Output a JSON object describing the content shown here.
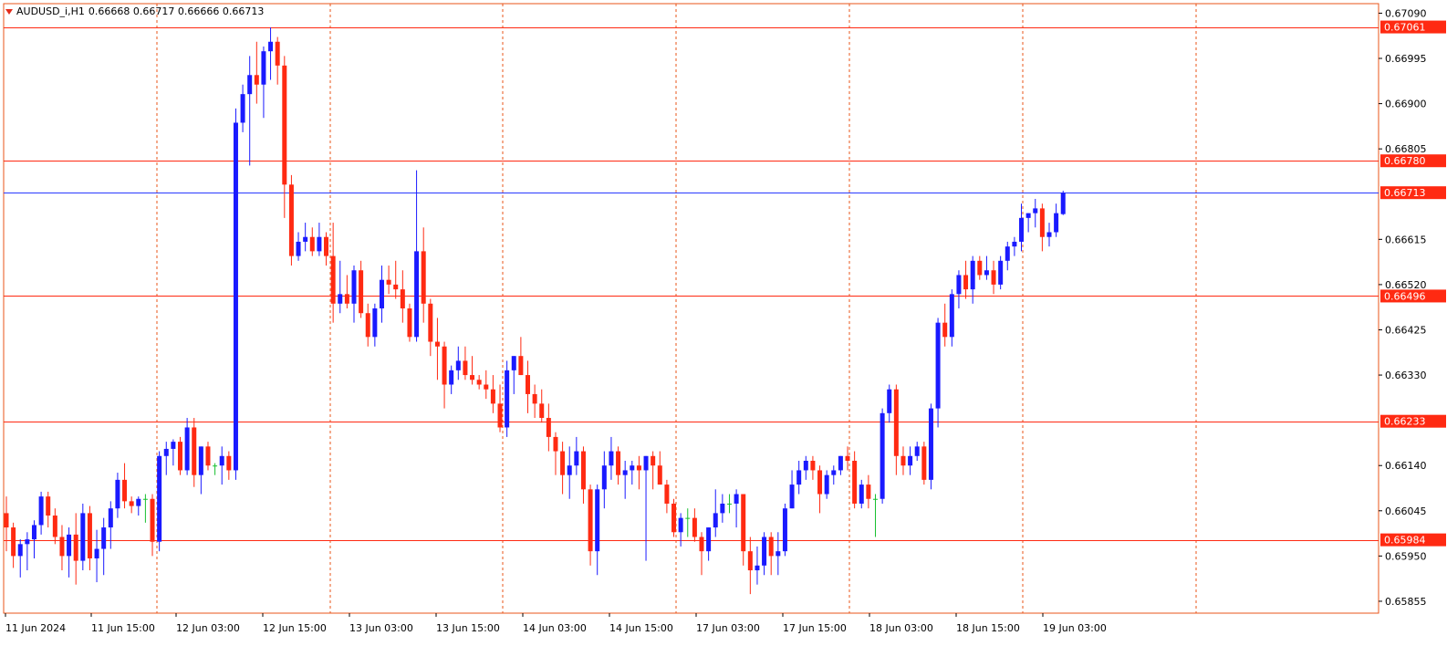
{
  "header": {
    "symbol": "AUDUSD_i,H1",
    "ohlc": "0.66668 0.66717 0.66666 0.66713"
  },
  "colors": {
    "bull": "#1a1aff",
    "bear": "#ff2a12",
    "doji": "#18c030",
    "level_line": "#ff2a12",
    "current_price_line": "#2a3aff",
    "grid": "#e8541a",
    "label_bg": "#ff2a12",
    "axis": "#e8541a"
  },
  "chart_data": {
    "type": "candlestick",
    "symbol": "AUDUSD_i",
    "timeframe": "H1",
    "y_range": [
      0.6583,
      0.6711
    ],
    "y_ticks": [
      "0.67090",
      "0.66995",
      "0.66900",
      "0.66805",
      "0.66615",
      "0.66520",
      "0.66425",
      "0.66330",
      "0.66140",
      "0.66045",
      "0.65950",
      "0.65855"
    ],
    "x_ticks": [
      "11 Jun 2024",
      "11 Jun 15:00",
      "12 Jun 03:00",
      "12 Jun 15:00",
      "13 Jun 03:00",
      "13 Jun 15:00",
      "14 Jun 03:00",
      "14 Jun 15:00",
      "17 Jun 03:00",
      "17 Jun 15:00",
      "18 Jun 03:00",
      "18 Jun 15:00",
      "19 Jun 03:00"
    ],
    "levels": [
      {
        "label": "0.67061",
        "value": 0.67061
      },
      {
        "label": "0.66780",
        "value": 0.6678
      },
      {
        "label": "0.66496",
        "value": 0.66496
      },
      {
        "label": "0.66233",
        "value": 0.66233
      },
      {
        "label": "0.65984",
        "value": 0.65984
      }
    ],
    "current_price": {
      "label": "0.66713",
      "value": 0.66713
    },
    "candles": [
      [
        0.6604,
        0.66075,
        0.6596,
        0.6601
      ],
      [
        0.6601,
        0.6602,
        0.65925,
        0.6595
      ],
      [
        0.6595,
        0.65985,
        0.65905,
        0.65975
      ],
      [
        0.65975,
        0.66,
        0.6592,
        0.65985
      ],
      [
        0.65985,
        0.66025,
        0.65945,
        0.66015
      ],
      [
        0.66015,
        0.66085,
        0.65995,
        0.66075
      ],
      [
        0.66075,
        0.66085,
        0.6601,
        0.66035
      ],
      [
        0.66035,
        0.6605,
        0.65975,
        0.6599
      ],
      [
        0.6599,
        0.66015,
        0.6592,
        0.6595
      ],
      [
        0.6595,
        0.6601,
        0.65905,
        0.65995
      ],
      [
        0.65995,
        0.6604,
        0.6589,
        0.6594
      ],
      [
        0.6594,
        0.6606,
        0.6592,
        0.6604
      ],
      [
        0.6604,
        0.66055,
        0.6592,
        0.65945
      ],
      [
        0.65945,
        0.66005,
        0.65895,
        0.65965
      ],
      [
        0.65965,
        0.6603,
        0.6591,
        0.6601
      ],
      [
        0.6601,
        0.66065,
        0.65965,
        0.6605
      ],
      [
        0.6605,
        0.66125,
        0.6603,
        0.6611
      ],
      [
        0.6611,
        0.66145,
        0.6605,
        0.66065
      ],
      [
        0.66065,
        0.66075,
        0.6604,
        0.66055
      ],
      [
        0.66055,
        0.66075,
        0.66035,
        0.6607
      ],
      [
        0.6607,
        0.6608,
        0.6602,
        0.6607
      ],
      [
        0.6607,
        0.6608,
        0.6595,
        0.6598
      ],
      [
        0.6598,
        0.6617,
        0.6596,
        0.6616
      ],
      [
        0.6616,
        0.6619,
        0.6612,
        0.66175
      ],
      [
        0.66175,
        0.66195,
        0.6614,
        0.6619
      ],
      [
        0.6619,
        0.662,
        0.6612,
        0.6613
      ],
      [
        0.6613,
        0.6624,
        0.6612,
        0.6622
      ],
      [
        0.6622,
        0.6624,
        0.66095,
        0.6612
      ],
      [
        0.6612,
        0.6618,
        0.6608,
        0.6618
      ],
      [
        0.6618,
        0.6619,
        0.6613,
        0.6614
      ],
      [
        0.6614,
        0.66145,
        0.6612,
        0.6614
      ],
      [
        0.6614,
        0.6618,
        0.661,
        0.6616
      ],
      [
        0.6616,
        0.6617,
        0.6611,
        0.6613
      ],
      [
        0.6613,
        0.6689,
        0.6611,
        0.6686
      ],
      [
        0.6686,
        0.6694,
        0.6684,
        0.6692
      ],
      [
        0.6692,
        0.67,
        0.6677,
        0.6696
      ],
      [
        0.6696,
        0.6703,
        0.669,
        0.6694
      ],
      [
        0.6694,
        0.6702,
        0.6687,
        0.6701
      ],
      [
        0.6701,
        0.6706,
        0.6695,
        0.6703
      ],
      [
        0.6703,
        0.6704,
        0.6694,
        0.6698
      ],
      [
        0.6698,
        0.67,
        0.6666,
        0.6673
      ],
      [
        0.6673,
        0.6675,
        0.6656,
        0.6658
      ],
      [
        0.6658,
        0.6663,
        0.6657,
        0.6661
      ],
      [
        0.6661,
        0.6665,
        0.6659,
        0.6662
      ],
      [
        0.6662,
        0.6664,
        0.6658,
        0.6659
      ],
      [
        0.6659,
        0.6665,
        0.6658,
        0.6662
      ],
      [
        0.6662,
        0.6663,
        0.6656,
        0.6658
      ],
      [
        0.6658,
        0.6665,
        0.6644,
        0.6648
      ],
      [
        0.6648,
        0.6657,
        0.6646,
        0.665
      ],
      [
        0.665,
        0.6654,
        0.6647,
        0.6648
      ],
      [
        0.6648,
        0.6656,
        0.6644,
        0.6655
      ],
      [
        0.6655,
        0.6657,
        0.6645,
        0.6646
      ],
      [
        0.6646,
        0.6648,
        0.6639,
        0.6641
      ],
      [
        0.6641,
        0.6648,
        0.6639,
        0.6647
      ],
      [
        0.6647,
        0.6656,
        0.6644,
        0.6653
      ],
      [
        0.6653,
        0.6656,
        0.665,
        0.6652
      ],
      [
        0.6652,
        0.6657,
        0.6649,
        0.6651
      ],
      [
        0.6651,
        0.6655,
        0.6644,
        0.6647
      ],
      [
        0.6647,
        0.6648,
        0.664,
        0.6641
      ],
      [
        0.6641,
        0.6676,
        0.664,
        0.6659
      ],
      [
        0.6659,
        0.6664,
        0.6644,
        0.6648
      ],
      [
        0.6648,
        0.6649,
        0.6637,
        0.664
      ],
      [
        0.664,
        0.6645,
        0.6632,
        0.6639
      ],
      [
        0.6639,
        0.664,
        0.6626,
        0.6631
      ],
      [
        0.6631,
        0.6635,
        0.6629,
        0.6634
      ],
      [
        0.6634,
        0.6639,
        0.6632,
        0.6636
      ],
      [
        0.6636,
        0.6639,
        0.6632,
        0.6633
      ],
      [
        0.6633,
        0.6637,
        0.6631,
        0.6632
      ],
      [
        0.6632,
        0.6633,
        0.663,
        0.6631
      ],
      [
        0.6631,
        0.6634,
        0.6628,
        0.663
      ],
      [
        0.663,
        0.6633,
        0.6625,
        0.6627
      ],
      [
        0.6627,
        0.6631,
        0.6621,
        0.6622
      ],
      [
        0.6622,
        0.6636,
        0.662,
        0.6634
      ],
      [
        0.6634,
        0.6637,
        0.6629,
        0.6637
      ],
      [
        0.6637,
        0.6641,
        0.6633,
        0.6633
      ],
      [
        0.6633,
        0.6636,
        0.6625,
        0.6629
      ],
      [
        0.6629,
        0.6631,
        0.6624,
        0.6627
      ],
      [
        0.6627,
        0.663,
        0.6623,
        0.6624
      ],
      [
        0.6624,
        0.6627,
        0.6617,
        0.662
      ],
      [
        0.662,
        0.6621,
        0.6612,
        0.6617
      ],
      [
        0.6617,
        0.6619,
        0.6608,
        0.6612
      ],
      [
        0.6612,
        0.6618,
        0.6607,
        0.6614
      ],
      [
        0.6614,
        0.662,
        0.6612,
        0.6617
      ],
      [
        0.6617,
        0.6618,
        0.6606,
        0.6609
      ],
      [
        0.6609,
        0.661,
        0.6593,
        0.6596
      ],
      [
        0.6596,
        0.661,
        0.6591,
        0.6609
      ],
      [
        0.6609,
        0.6617,
        0.6605,
        0.6614
      ],
      [
        0.6614,
        0.662,
        0.6611,
        0.6617
      ],
      [
        0.6617,
        0.6618,
        0.661,
        0.6612
      ],
      [
        0.6612,
        0.6615,
        0.6607,
        0.6613
      ],
      [
        0.6613,
        0.6615,
        0.661,
        0.6614
      ],
      [
        0.6614,
        0.6616,
        0.6609,
        0.6613
      ],
      [
        0.6613,
        0.6616,
        0.6594,
        0.6616
      ],
      [
        0.6616,
        0.6617,
        0.6609,
        0.6614
      ],
      [
        0.6614,
        0.6617,
        0.661,
        0.661
      ],
      [
        0.661,
        0.6611,
        0.6604,
        0.6606
      ],
      [
        0.6606,
        0.6607,
        0.6599,
        0.66
      ],
      [
        0.66,
        0.6604,
        0.6597,
        0.6603
      ],
      [
        0.6603,
        0.6605,
        0.6599,
        0.6603
      ],
      [
        0.6603,
        0.6605,
        0.6598,
        0.6599
      ],
      [
        0.6599,
        0.66,
        0.6591,
        0.6596
      ],
      [
        0.6596,
        0.6601,
        0.6594,
        0.6601
      ],
      [
        0.6601,
        0.6609,
        0.6599,
        0.6604
      ],
      [
        0.6604,
        0.6608,
        0.6602,
        0.6606
      ],
      [
        0.6606,
        0.6608,
        0.6604,
        0.6606
      ],
      [
        0.6606,
        0.6609,
        0.6601,
        0.6608
      ],
      [
        0.6608,
        0.6608,
        0.6593,
        0.6596
      ],
      [
        0.6596,
        0.6599,
        0.6587,
        0.6592
      ],
      [
        0.6592,
        0.6597,
        0.6589,
        0.6593
      ],
      [
        0.6593,
        0.66,
        0.6591,
        0.6599
      ],
      [
        0.6599,
        0.66,
        0.6591,
        0.6595
      ],
      [
        0.6595,
        0.66,
        0.6591,
        0.6596
      ],
      [
        0.6596,
        0.6606,
        0.6595,
        0.6605
      ],
      [
        0.6605,
        0.6613,
        0.6605,
        0.661
      ],
      [
        0.661,
        0.6615,
        0.6608,
        0.6613
      ],
      [
        0.6613,
        0.6616,
        0.6611,
        0.6615
      ],
      [
        0.6615,
        0.6616,
        0.6611,
        0.6613
      ],
      [
        0.6613,
        0.6614,
        0.6604,
        0.6608
      ],
      [
        0.6608,
        0.6613,
        0.6607,
        0.6612
      ],
      [
        0.6612,
        0.6614,
        0.661,
        0.6613
      ],
      [
        0.6613,
        0.6616,
        0.6612,
        0.6616
      ],
      [
        0.6616,
        0.6618,
        0.6613,
        0.6615
      ],
      [
        0.6615,
        0.6617,
        0.6605,
        0.6606
      ],
      [
        0.6606,
        0.6611,
        0.6605,
        0.661
      ],
      [
        0.661,
        0.6612,
        0.6605,
        0.6607
      ],
      [
        0.6607,
        0.6608,
        0.6599,
        0.6607
      ],
      [
        0.6607,
        0.6626,
        0.6606,
        0.6625
      ],
      [
        0.6625,
        0.6631,
        0.6623,
        0.663
      ],
      [
        0.663,
        0.6631,
        0.6612,
        0.6616
      ],
      [
        0.6616,
        0.6618,
        0.6612,
        0.6614
      ],
      [
        0.6614,
        0.6618,
        0.6612,
        0.6616
      ],
      [
        0.6616,
        0.6619,
        0.6615,
        0.6618
      ],
      [
        0.6618,
        0.6619,
        0.661,
        0.6611
      ],
      [
        0.6611,
        0.6627,
        0.6609,
        0.6626
      ],
      [
        0.6626,
        0.6645,
        0.6622,
        0.6644
      ],
      [
        0.6644,
        0.6648,
        0.6639,
        0.6641
      ],
      [
        0.6641,
        0.6651,
        0.6639,
        0.665
      ],
      [
        0.665,
        0.6655,
        0.6647,
        0.6654
      ],
      [
        0.6654,
        0.6657,
        0.6649,
        0.6651
      ],
      [
        0.6651,
        0.6658,
        0.6648,
        0.6657
      ],
      [
        0.6657,
        0.6658,
        0.6653,
        0.6654
      ],
      [
        0.6654,
        0.6658,
        0.6653,
        0.6655
      ],
      [
        0.6655,
        0.6657,
        0.665,
        0.6652
      ],
      [
        0.6652,
        0.6658,
        0.6651,
        0.6657
      ],
      [
        0.6657,
        0.6661,
        0.6655,
        0.666
      ],
      [
        0.666,
        0.6662,
        0.6658,
        0.6661
      ],
      [
        0.6661,
        0.6669,
        0.6659,
        0.6666
      ],
      [
        0.6666,
        0.6667,
        0.6663,
        0.6667
      ],
      [
        0.6667,
        0.667,
        0.6664,
        0.6668
      ],
      [
        0.6668,
        0.6669,
        0.6659,
        0.6662
      ],
      [
        0.6662,
        0.6665,
        0.666,
        0.6663
      ],
      [
        0.6663,
        0.6669,
        0.6662,
        0.6667
      ],
      [
        0.66668,
        0.66717,
        0.66666,
        0.66713
      ]
    ]
  }
}
